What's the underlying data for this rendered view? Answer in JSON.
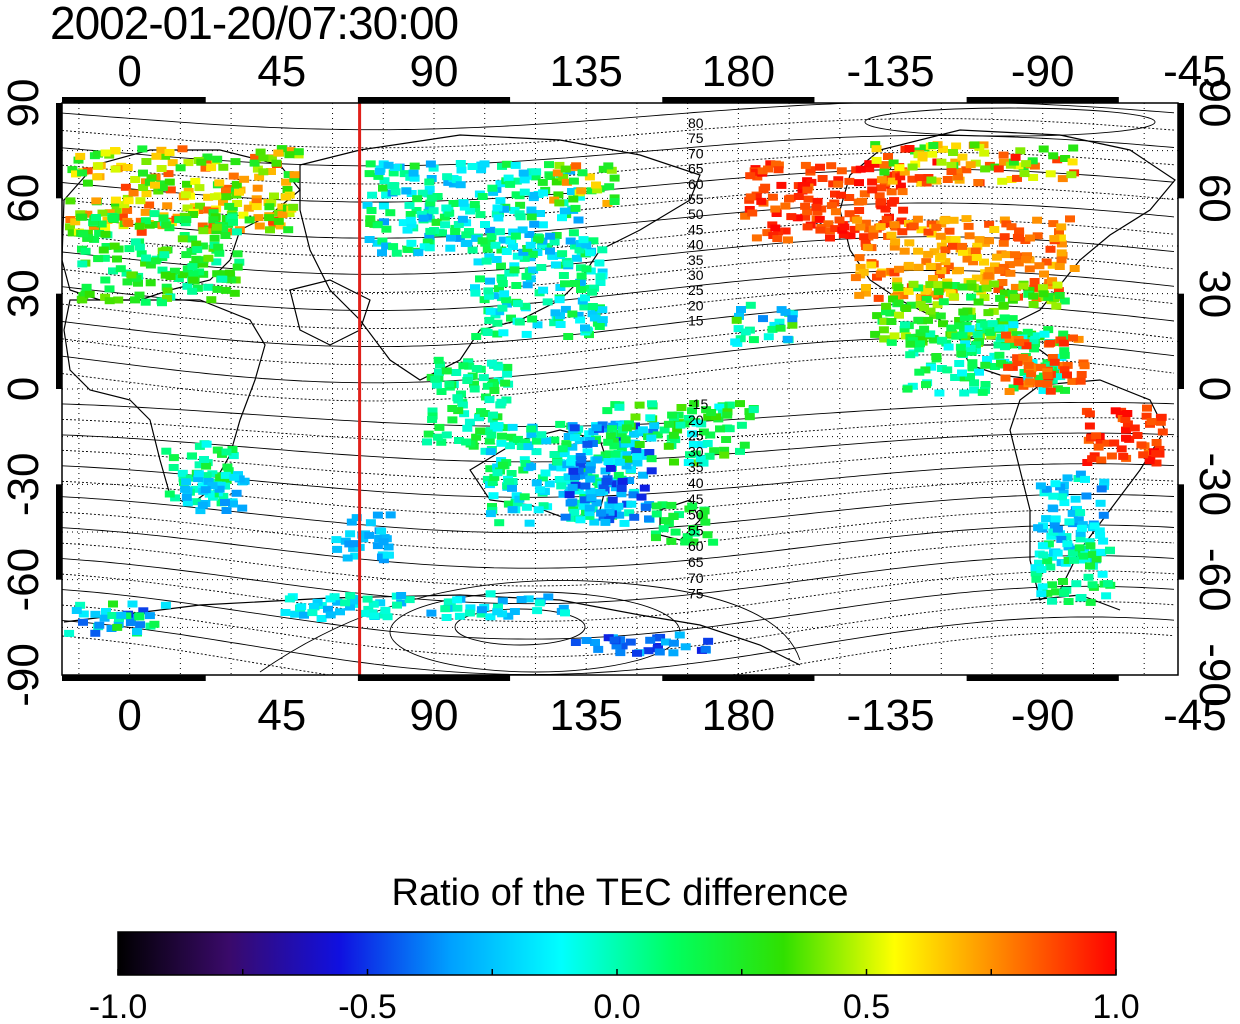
{
  "title": "2002-01-20/07:30:00",
  "map": {
    "lon_ticks": [
      "0",
      "45",
      "90",
      "135",
      "180",
      "-135",
      "-90",
      "-45"
    ],
    "lat_ticks": [
      "90",
      "60",
      "30",
      "0",
      "-30",
      "-60",
      "-90"
    ],
    "lon_range_deg": [
      -20,
      310
    ],
    "lat_range_deg": [
      -90,
      90
    ],
    "grid": "dotted, every 15 degrees",
    "meridian_line": {
      "lon": 68,
      "color": "#e0201a"
    },
    "contour_labels_north": [
      "80",
      "75",
      "70",
      "65",
      "60",
      "55",
      "50",
      "45",
      "40",
      "35",
      "30",
      "25",
      "20",
      "15"
    ],
    "contour_labels_south": [
      "-15",
      "20",
      "25",
      "30",
      "35",
      "40",
      "45",
      "50",
      "55",
      "60",
      "65",
      "70",
      "75"
    ]
  },
  "colorbar": {
    "title": "Ratio of the TEC difference",
    "range": [
      -1.0,
      1.0
    ],
    "tick_labels": [
      "-1.0",
      "-0.5",
      "0.0",
      "0.5",
      "1.0"
    ],
    "colors": [
      "#000000",
      "#3a0a6a",
      "#1010e0",
      "#00a0ff",
      "#00ffff",
      "#00ff60",
      "#30e000",
      "#ffff00",
      "#ff8000",
      "#ff0000"
    ]
  }
}
